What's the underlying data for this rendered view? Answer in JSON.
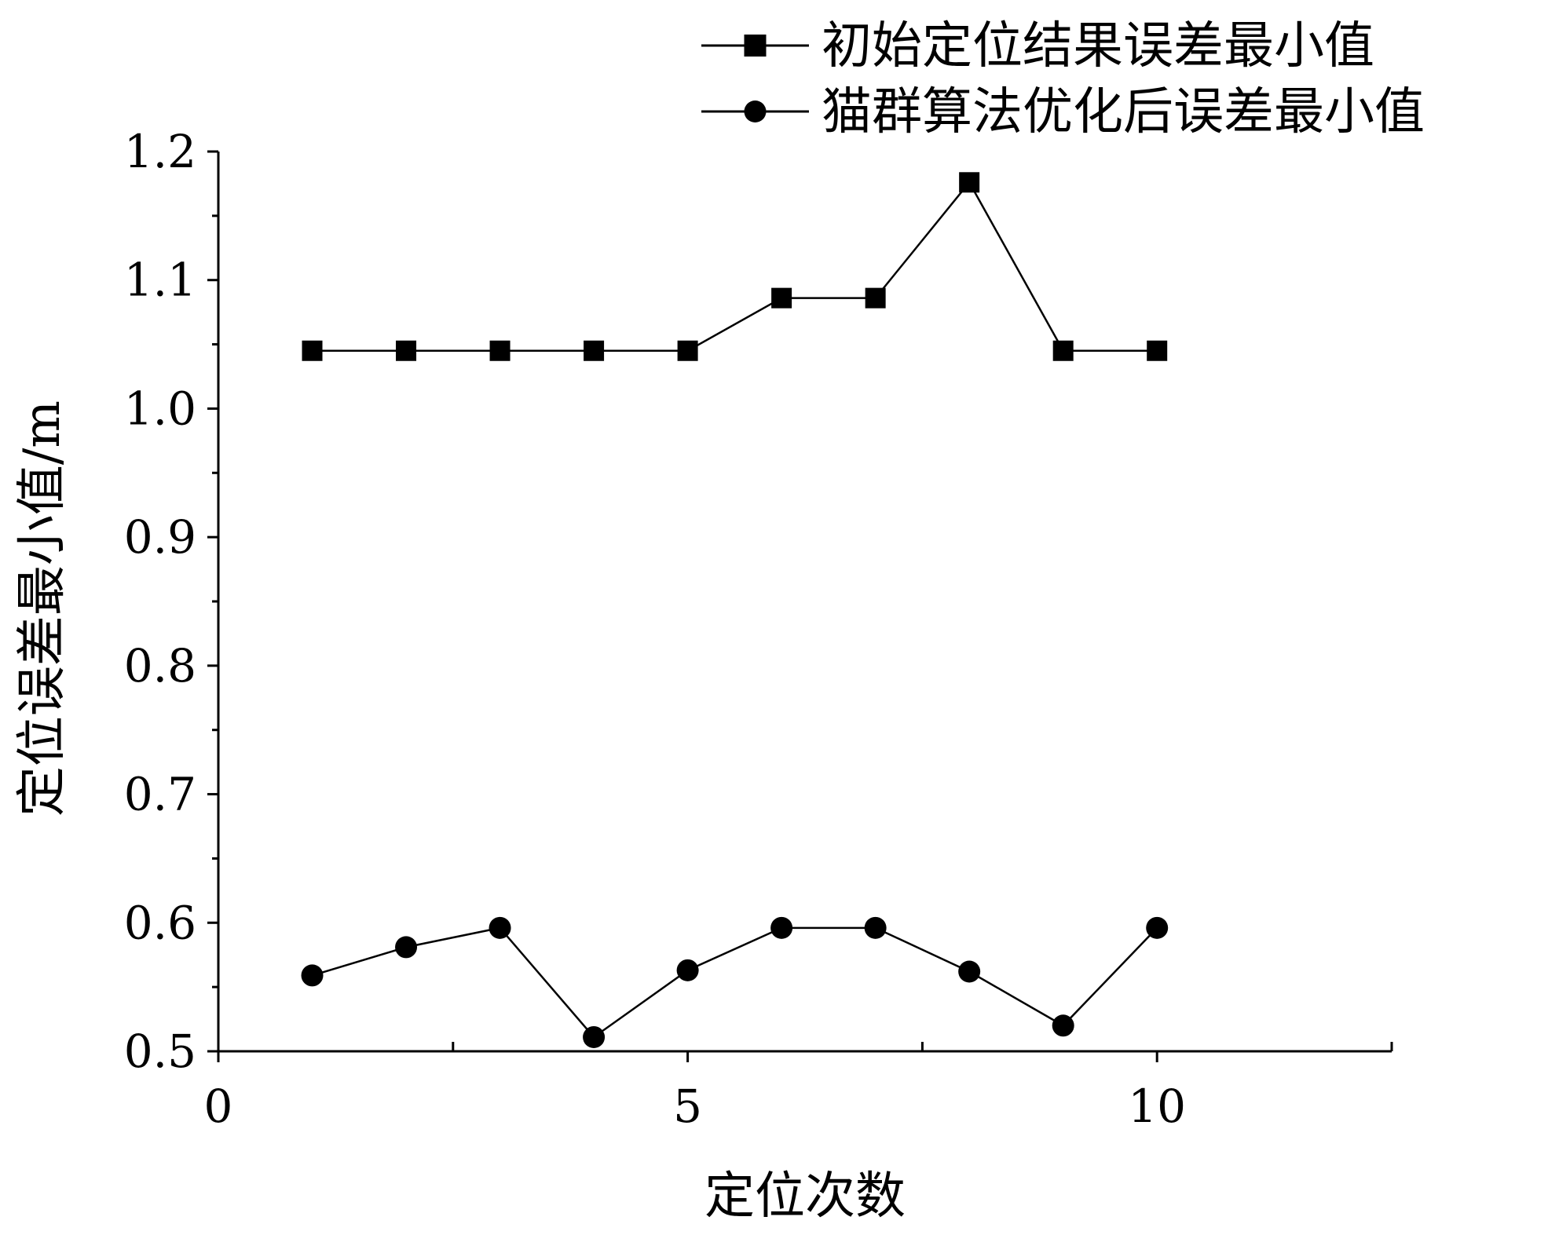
{
  "chart_data": {
    "type": "line",
    "xlabel": "定位次数",
    "ylabel": "定位误差最小值/m",
    "xlim": [
      0,
      12.5
    ],
    "ylim": [
      0.5,
      1.2
    ],
    "xticks": [
      0,
      5,
      10
    ],
    "xtick_labels": [
      "0",
      "5",
      "10"
    ],
    "yticks": [
      0.5,
      0.6,
      0.7,
      0.8,
      0.9,
      1.0,
      1.1,
      1.2
    ],
    "ytick_labels": [
      "0.5",
      "0.6",
      "0.7",
      "0.8",
      "0.9",
      "1.0",
      "1.1",
      "1.2"
    ],
    "grid": false,
    "legend_position": "top-right",
    "x": [
      1,
      2,
      3,
      4,
      5,
      6,
      7,
      8,
      9,
      10
    ],
    "series": [
      {
        "name": "初始定位结果误差最小值",
        "marker": "square",
        "color": "#000000",
        "values": [
          1.045,
          1.045,
          1.045,
          1.045,
          1.045,
          1.086,
          1.086,
          1.176,
          1.045,
          1.045
        ]
      },
      {
        "name": "猫群算法优化后误差最小值",
        "marker": "circle",
        "color": "#000000",
        "values": [
          0.559,
          0.581,
          0.596,
          0.511,
          0.563,
          0.596,
          0.596,
          0.562,
          0.52,
          0.596
        ]
      }
    ]
  }
}
